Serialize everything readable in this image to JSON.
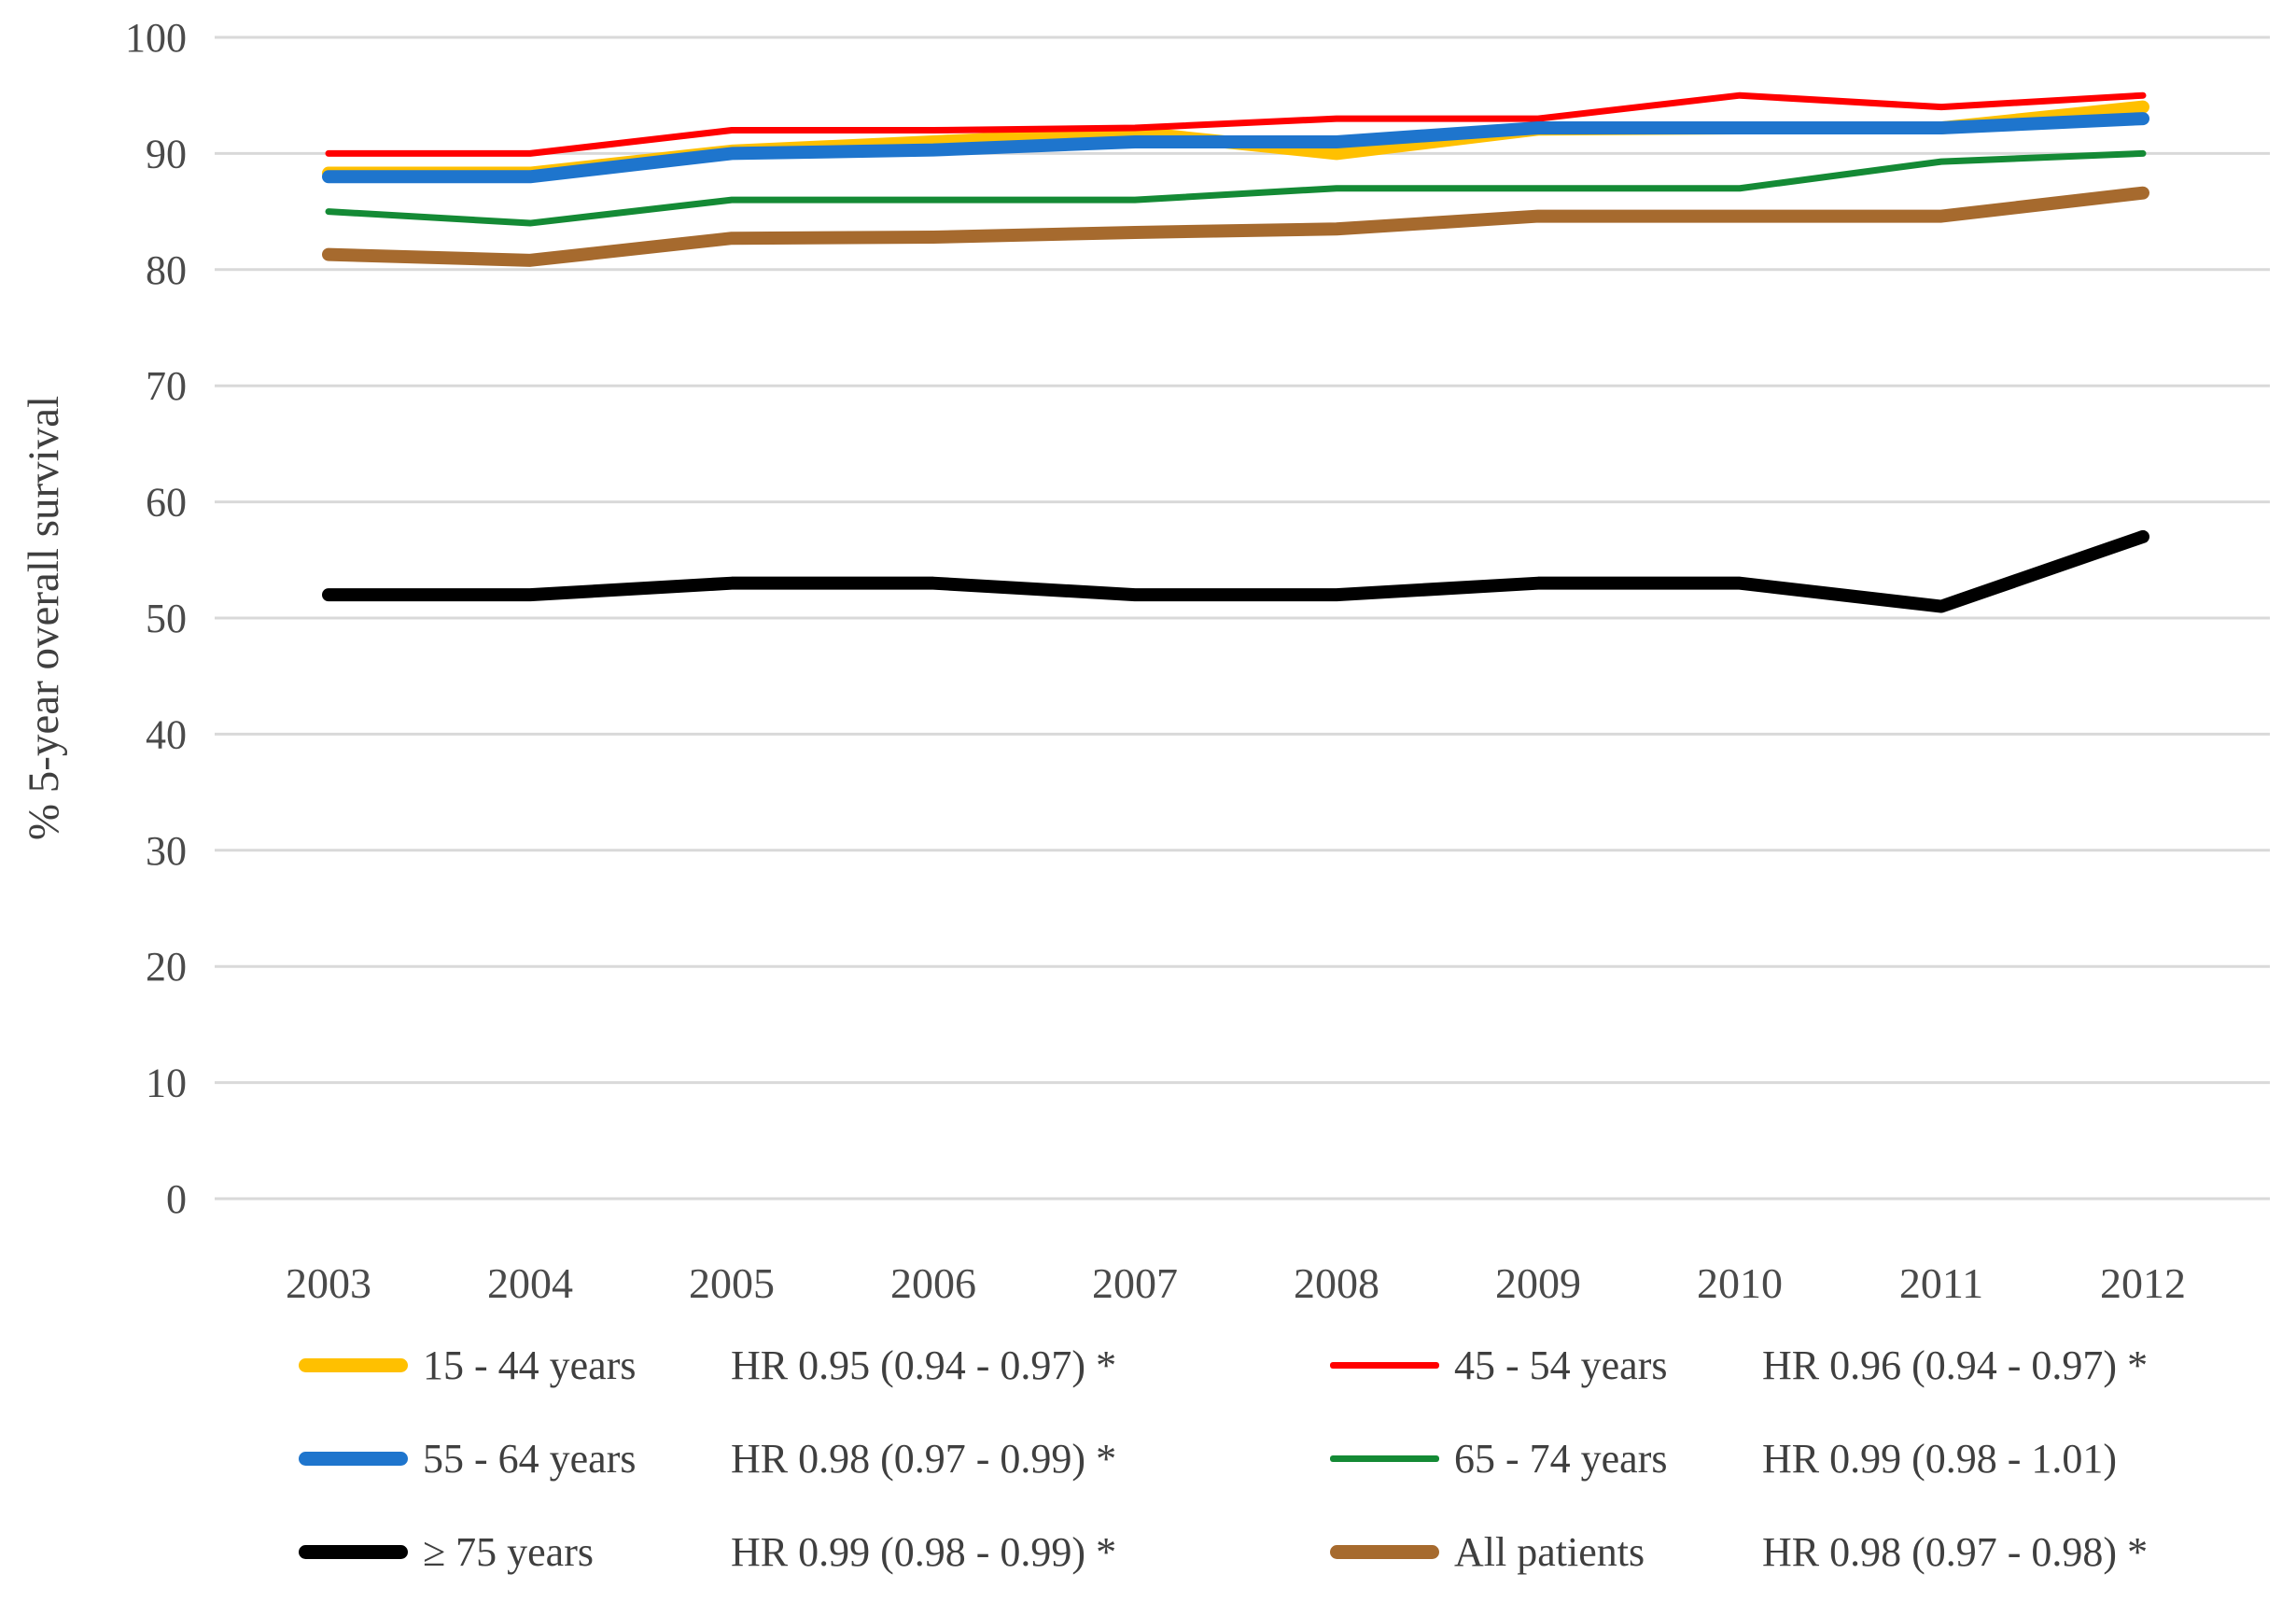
{
  "chart_data": {
    "type": "line",
    "title": "",
    "xlabel": "",
    "ylabel": "% 5-year overall survival",
    "ylim": [
      0,
      100
    ],
    "yticks": [
      0,
      10,
      20,
      30,
      40,
      50,
      60,
      70,
      80,
      90,
      100
    ],
    "grid": "horizontal-only",
    "gridline_color": "#d9d9d9",
    "tick_label_color": "#4a4a4a",
    "legend_position": "bottom, two columns, three rows",
    "categories": [
      "2003",
      "2004",
      "2005",
      "2006",
      "2007",
      "2008",
      "2009",
      "2010",
      "2011",
      "2012"
    ],
    "series": [
      {
        "name": "15 - 44 years",
        "hr": "HR 0.95 (0.94 - 0.97) *",
        "color": "#FFC000",
        "thickness": "thick",
        "values": [
          88.3,
          88.3,
          90.2,
          91,
          91.8,
          90,
          92.1,
          92.2,
          92.2,
          94
        ]
      },
      {
        "name": "45 - 54 years",
        "hr": "HR 0.96 (0.94 - 0.97) *",
        "color": "#FF0000",
        "thickness": "thin",
        "values": [
          90,
          90,
          92,
          92,
          92.2,
          93,
          93,
          95,
          94,
          95
        ]
      },
      {
        "name": "55 - 64 years",
        "hr": "HR 0.98 (0.97 - 0.99) *",
        "color": "#1E75CD",
        "thickness": "thick",
        "values": [
          88,
          88,
          90,
          90.3,
          91,
          91,
          92.2,
          92.2,
          92.2,
          93
        ]
      },
      {
        "name": "65 - 74 years",
        "hr": "HR 0.99 (0.98 - 1.01)",
        "color": "#148A35",
        "thickness": "thin",
        "values": [
          85,
          84,
          86,
          86,
          86,
          87,
          87,
          87,
          89.3,
          90
        ]
      },
      {
        "name": "≥ 75 years",
        "hr": "HR 0.99 (0.98 - 0.99) *",
        "color": "#000000",
        "thickness": "thick",
        "values": [
          52,
          52,
          53,
          53,
          52,
          52,
          53,
          53,
          51,
          57
        ]
      },
      {
        "name": "All patients",
        "hr": "HR 0.98 (0.97 - 0.98) *",
        "color": "#A66A2E",
        "thickness": "thick",
        "values": [
          81.3,
          80.8,
          82.7,
          82.8,
          83.2,
          83.5,
          84.6,
          84.6,
          84.6,
          86.6
        ]
      }
    ]
  }
}
